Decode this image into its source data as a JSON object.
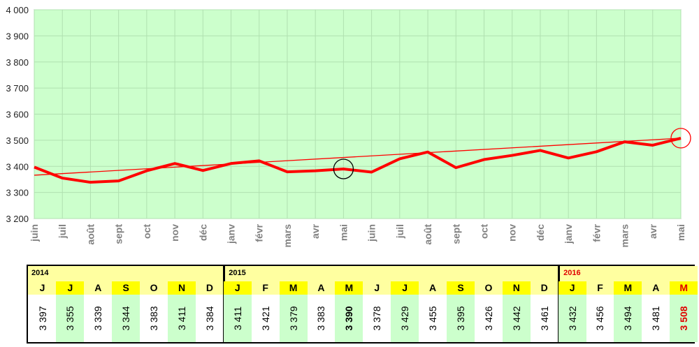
{
  "chart_data": {
    "type": "line",
    "categories": [
      "juin",
      "juil",
      "août",
      "sept",
      "oct",
      "nov",
      "déc",
      "janv",
      "févr",
      "mars",
      "avr",
      "mai",
      "juin",
      "juil",
      "août",
      "sept",
      "oct",
      "nov",
      "déc",
      "janv",
      "févr",
      "mars",
      "avr",
      "mai"
    ],
    "values": [
      3397,
      3355,
      3339,
      3344,
      3383,
      3411,
      3384,
      3411,
      3421,
      3379,
      3383,
      3390,
      3378,
      3429,
      3455,
      3395,
      3426,
      3442,
      3461,
      3432,
      3456,
      3494,
      3481,
      3508
    ],
    "trend": [
      3366,
      3508
    ],
    "ylim": [
      3200,
      4000
    ],
    "yticks": [
      "3 200",
      "3 300",
      "3 400",
      "3 500",
      "3 600",
      "3 700",
      "3 800",
      "3 900",
      "4 000"
    ],
    "grid": true,
    "background": "#ccffcc",
    "line_color": "#ff0000",
    "highlight_circles": [
      {
        "index": 11,
        "color": "#000000"
      },
      {
        "index": 23,
        "color": "#ff0000"
      }
    ]
  },
  "table": {
    "years": [
      {
        "year": "2014",
        "current": false,
        "months": [
          {
            "m": "J",
            "v": "3 397",
            "hl": false
          },
          {
            "m": "J",
            "v": "3 355",
            "hl": true
          },
          {
            "m": "A",
            "v": "3 339",
            "hl": false
          },
          {
            "m": "S",
            "v": "3 344",
            "hl": true
          },
          {
            "m": "O",
            "v": "3 383",
            "hl": false
          },
          {
            "m": "N",
            "v": "3 411",
            "hl": true
          },
          {
            "m": "D",
            "v": "3 384",
            "hl": false
          }
        ]
      },
      {
        "year": "2015",
        "current": false,
        "months": [
          {
            "m": "J",
            "v": "3 411",
            "hl": true
          },
          {
            "m": "F",
            "v": "3 421",
            "hl": false
          },
          {
            "m": "M",
            "v": "3 379",
            "hl": true
          },
          {
            "m": "A",
            "v": "3 383",
            "hl": false
          },
          {
            "m": "M",
            "v": "3 390",
            "hl": true,
            "bold": true
          },
          {
            "m": "J",
            "v": "3 378",
            "hl": false
          },
          {
            "m": "J",
            "v": "3 429",
            "hl": true
          },
          {
            "m": "A",
            "v": "3 455",
            "hl": false
          },
          {
            "m": "S",
            "v": "3 395",
            "hl": true
          },
          {
            "m": "O",
            "v": "3 426",
            "hl": false
          },
          {
            "m": "N",
            "v": "3 442",
            "hl": true
          },
          {
            "m": "D",
            "v": "3 461",
            "hl": false
          }
        ]
      },
      {
        "year": "2016",
        "current": true,
        "months": [
          {
            "m": "J",
            "v": "3 432",
            "hl": true
          },
          {
            "m": "F",
            "v": "3 456",
            "hl": false
          },
          {
            "m": "M",
            "v": "3 494",
            "hl": true
          },
          {
            "m": "A",
            "v": "3 481",
            "hl": false
          },
          {
            "m": "M",
            "v": "3 508",
            "hl": true,
            "red": true
          }
        ]
      }
    ]
  }
}
